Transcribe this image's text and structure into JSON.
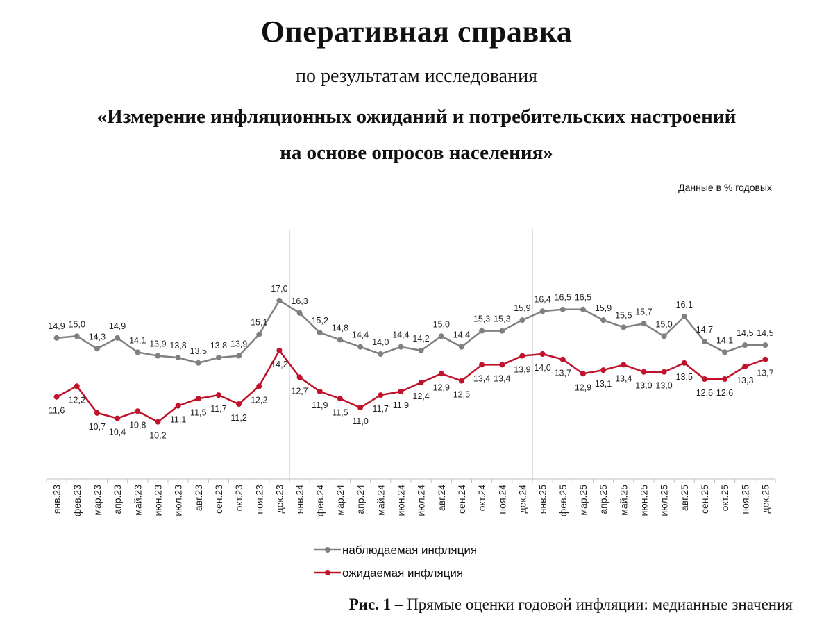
{
  "header": {
    "title": "Оперативная справка",
    "subtitle": "по результатам исследования",
    "study_line1": "«Измерение инфляционных ожиданий и потребительских настроений",
    "study_line2": "на основе опросов населения»",
    "units": "Данные в % годовых"
  },
  "caption": {
    "label": "Рис. 1",
    "text": "– Прямые оценки годовой инфляции: медианные значения"
  },
  "chart_data": {
    "type": "line",
    "title": "Прямые оценки годовой инфляции: медианные значения",
    "xlabel": "",
    "ylabel": "",
    "ylim": [
      7,
      21
    ],
    "grid": false,
    "legend_position": "bottom",
    "separators_after": [
      "дек.23",
      "дек.24"
    ],
    "categories": [
      "янв.23",
      "фев.23",
      "мар.23",
      "апр.23",
      "май.23",
      "июн.23",
      "июл.23",
      "авг.23",
      "сен.23",
      "окт.23",
      "ноя.23",
      "дек.23",
      "янв.24",
      "фев.24",
      "мар.24",
      "апр.24",
      "май.24",
      "июн.24",
      "июл.24",
      "авг.24",
      "сен.24",
      "окт.24",
      "ноя.24",
      "дек.24",
      "янв.25",
      "фев.25",
      "мар.25",
      "апр.25",
      "май.25",
      "июн.25",
      "июл.25",
      "авг.25",
      "сен.25",
      "окт.25",
      "ноя.25",
      "дек.25"
    ],
    "series": [
      {
        "name": "наблюдаемая инфляция",
        "color": "#808080",
        "label_position": "above",
        "values": [
          14.9,
          15.0,
          14.3,
          14.9,
          14.1,
          13.9,
          13.8,
          13.5,
          13.8,
          13.9,
          15.1,
          17.0,
          16.3,
          15.2,
          14.8,
          14.4,
          14.0,
          14.4,
          14.2,
          15.0,
          14.4,
          15.3,
          15.3,
          15.9,
          16.4,
          16.5,
          16.5,
          15.9,
          15.5,
          15.7,
          15.0,
          16.1,
          14.7,
          14.1,
          14.5,
          14.5
        ]
      },
      {
        "name": "ожидаемая инфляция",
        "color": "#c0122a",
        "label_position": "below",
        "values": [
          11.6,
          12.2,
          10.7,
          10.4,
          10.8,
          10.2,
          11.1,
          11.5,
          11.7,
          11.2,
          12.2,
          14.2,
          12.7,
          11.9,
          11.5,
          11.0,
          11.7,
          11.9,
          12.4,
          12.9,
          12.5,
          13.4,
          13.4,
          13.9,
          14.0,
          13.7,
          12.9,
          13.1,
          13.4,
          13.0,
          13.0,
          13.5,
          12.6,
          12.6,
          13.3,
          13.7
        ]
      }
    ]
  }
}
